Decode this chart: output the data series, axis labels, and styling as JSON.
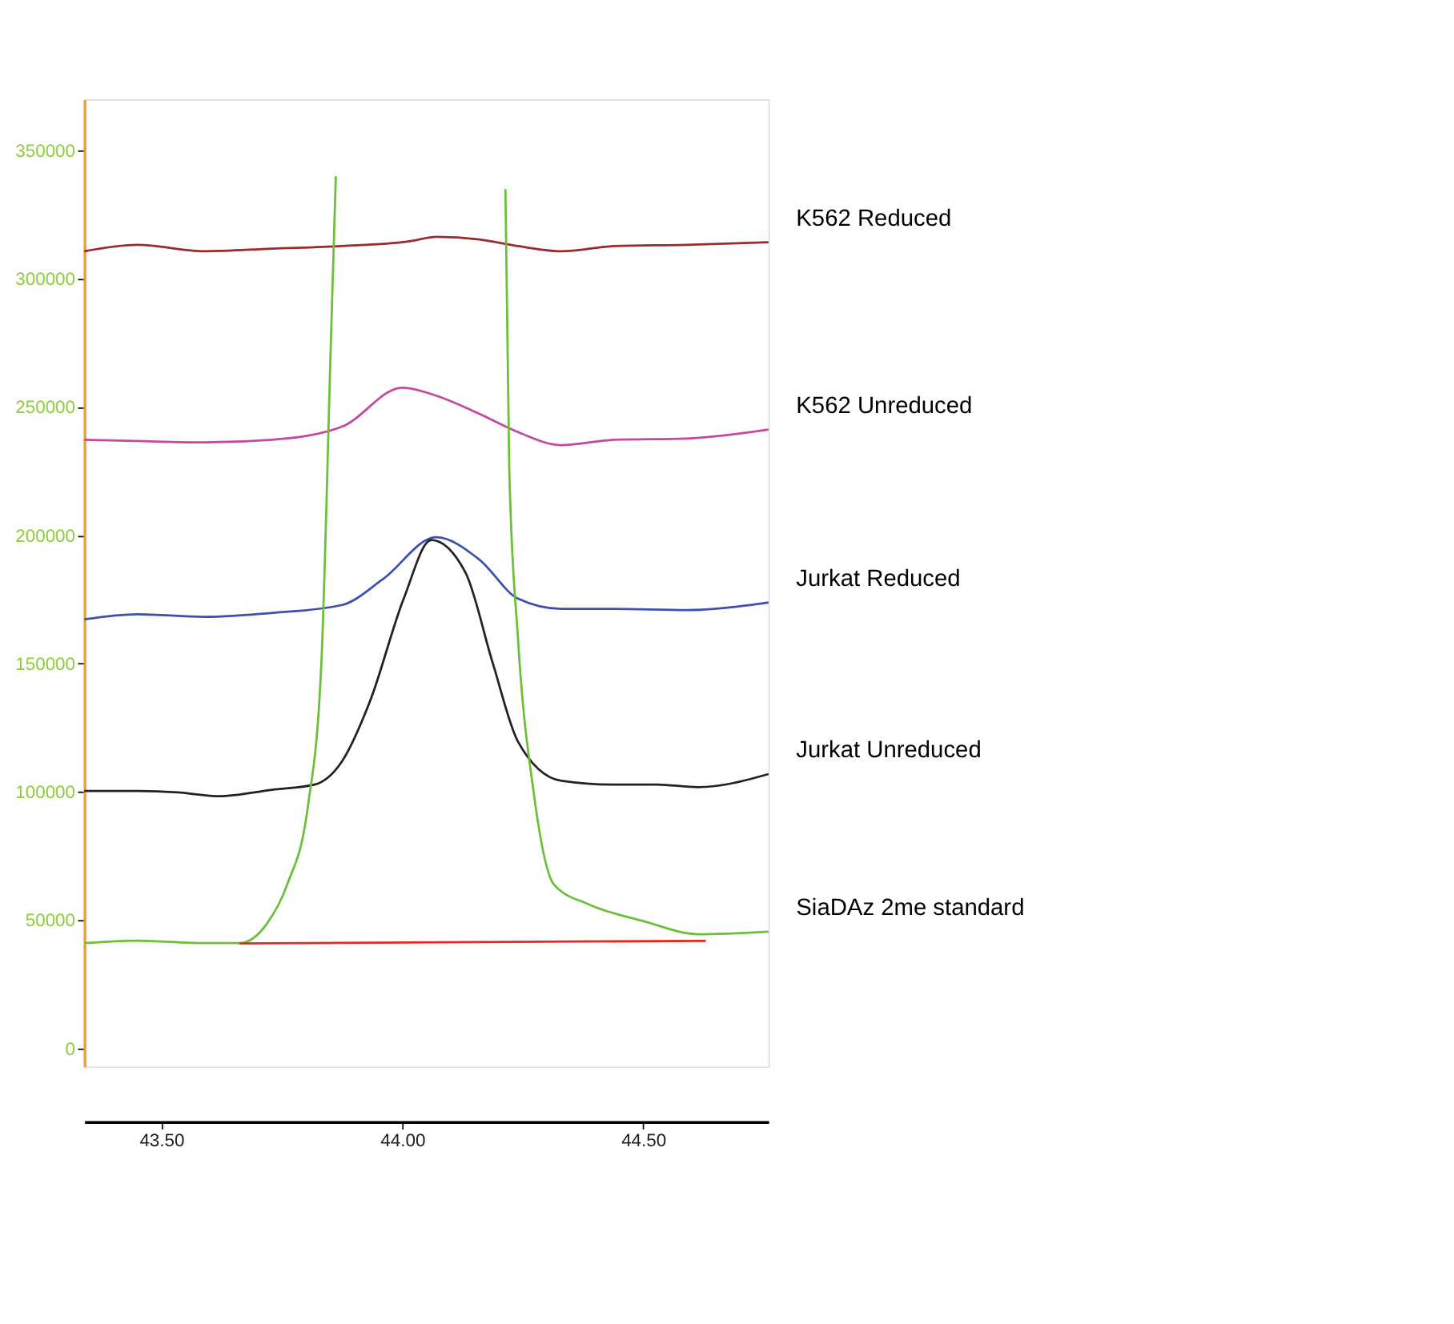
{
  "chart_data": {
    "type": "line",
    "xlim": [
      43.34,
      44.76
    ],
    "xticks": [
      {
        "value": 43.5,
        "label": "43.50"
      },
      {
        "value": 44.0,
        "label": "44.00"
      },
      {
        "value": 44.5,
        "label": "44.50"
      }
    ],
    "ylim": [
      -7000,
      370000
    ],
    "yticks": [
      0,
      50000,
      100000,
      150000,
      200000,
      250000,
      300000,
      350000
    ],
    "grid": false,
    "legend": false,
    "line_style": "solid",
    "marker": "none",
    "series": [
      {
        "name": "K562 Reduced",
        "color": "#9b2a2a",
        "x": [
          43.34,
          43.45,
          43.59,
          43.73,
          43.875,
          44.02,
          44.07,
          44.16,
          44.24,
          44.33,
          44.44,
          44.59,
          44.76
        ],
        "values": [
          310800,
          313300,
          310800,
          311800,
          312800,
          314800,
          316400,
          315400,
          312800,
          310800,
          312800,
          313300,
          314300
        ]
      },
      {
        "name": "K562 Unreduced",
        "color": "#c4489e",
        "x": [
          43.34,
          43.45,
          43.59,
          43.73,
          43.875,
          44.0,
          44.07,
          44.16,
          44.24,
          44.33,
          44.44,
          44.59,
          44.76
        ],
        "values": [
          237300,
          236800,
          236300,
          237300,
          242400,
          257600,
          254500,
          247400,
          240300,
          235200,
          237300,
          237800,
          241300
        ]
      },
      {
        "name": "Jurkat Reduced",
        "color": "#3d4fb0",
        "x": [
          43.34,
          43.45,
          43.59,
          43.73,
          43.875,
          43.96,
          44.07,
          44.16,
          44.24,
          44.33,
          44.44,
          44.59,
          44.76
        ],
        "values": [
          167300,
          169300,
          168300,
          169800,
          172900,
          183000,
          199300,
          190600,
          175400,
          171400,
          171400,
          170900,
          173900
        ]
      },
      {
        "name": "Jurkat Unreduced",
        "color": "#222222",
        "x": [
          43.34,
          43.45,
          43.534,
          43.619,
          43.73,
          43.818,
          43.875,
          43.932,
          44.003,
          44.06,
          44.131,
          44.188,
          44.24,
          44.33,
          44.44,
          44.528,
          44.614,
          44.76
        ],
        "values": [
          100400,
          100400,
          99900,
          98400,
          100900,
          102900,
          112000,
          134900,
          175400,
          198200,
          185600,
          150100,
          119700,
          104400,
          102900,
          102900,
          101900,
          107000
        ]
      },
      {
        "name": "SiaDAz 2me standard",
        "color": "#6cbf3a",
        "x": [
          43.34,
          43.45,
          43.59,
          43.662,
          43.719,
          43.761,
          43.804,
          43.832,
          43.852,
          43.862,
          44.04,
          44.214,
          44.222,
          44.24,
          44.273,
          44.315,
          44.386,
          44.5,
          44.614,
          44.76
        ],
        "values": [
          41100,
          42100,
          41100,
          41100,
          48700,
          63900,
          94300,
          150100,
          276800,
          340000,
          null,
          335000,
          226100,
          160200,
          99400,
          63900,
          56300,
          49700,
          44600,
          45600
        ]
      },
      {
        "color": "#e8281e",
        "x": [
          43.662,
          44.63
        ],
        "values": [
          41000,
          42000
        ]
      }
    ]
  }
}
